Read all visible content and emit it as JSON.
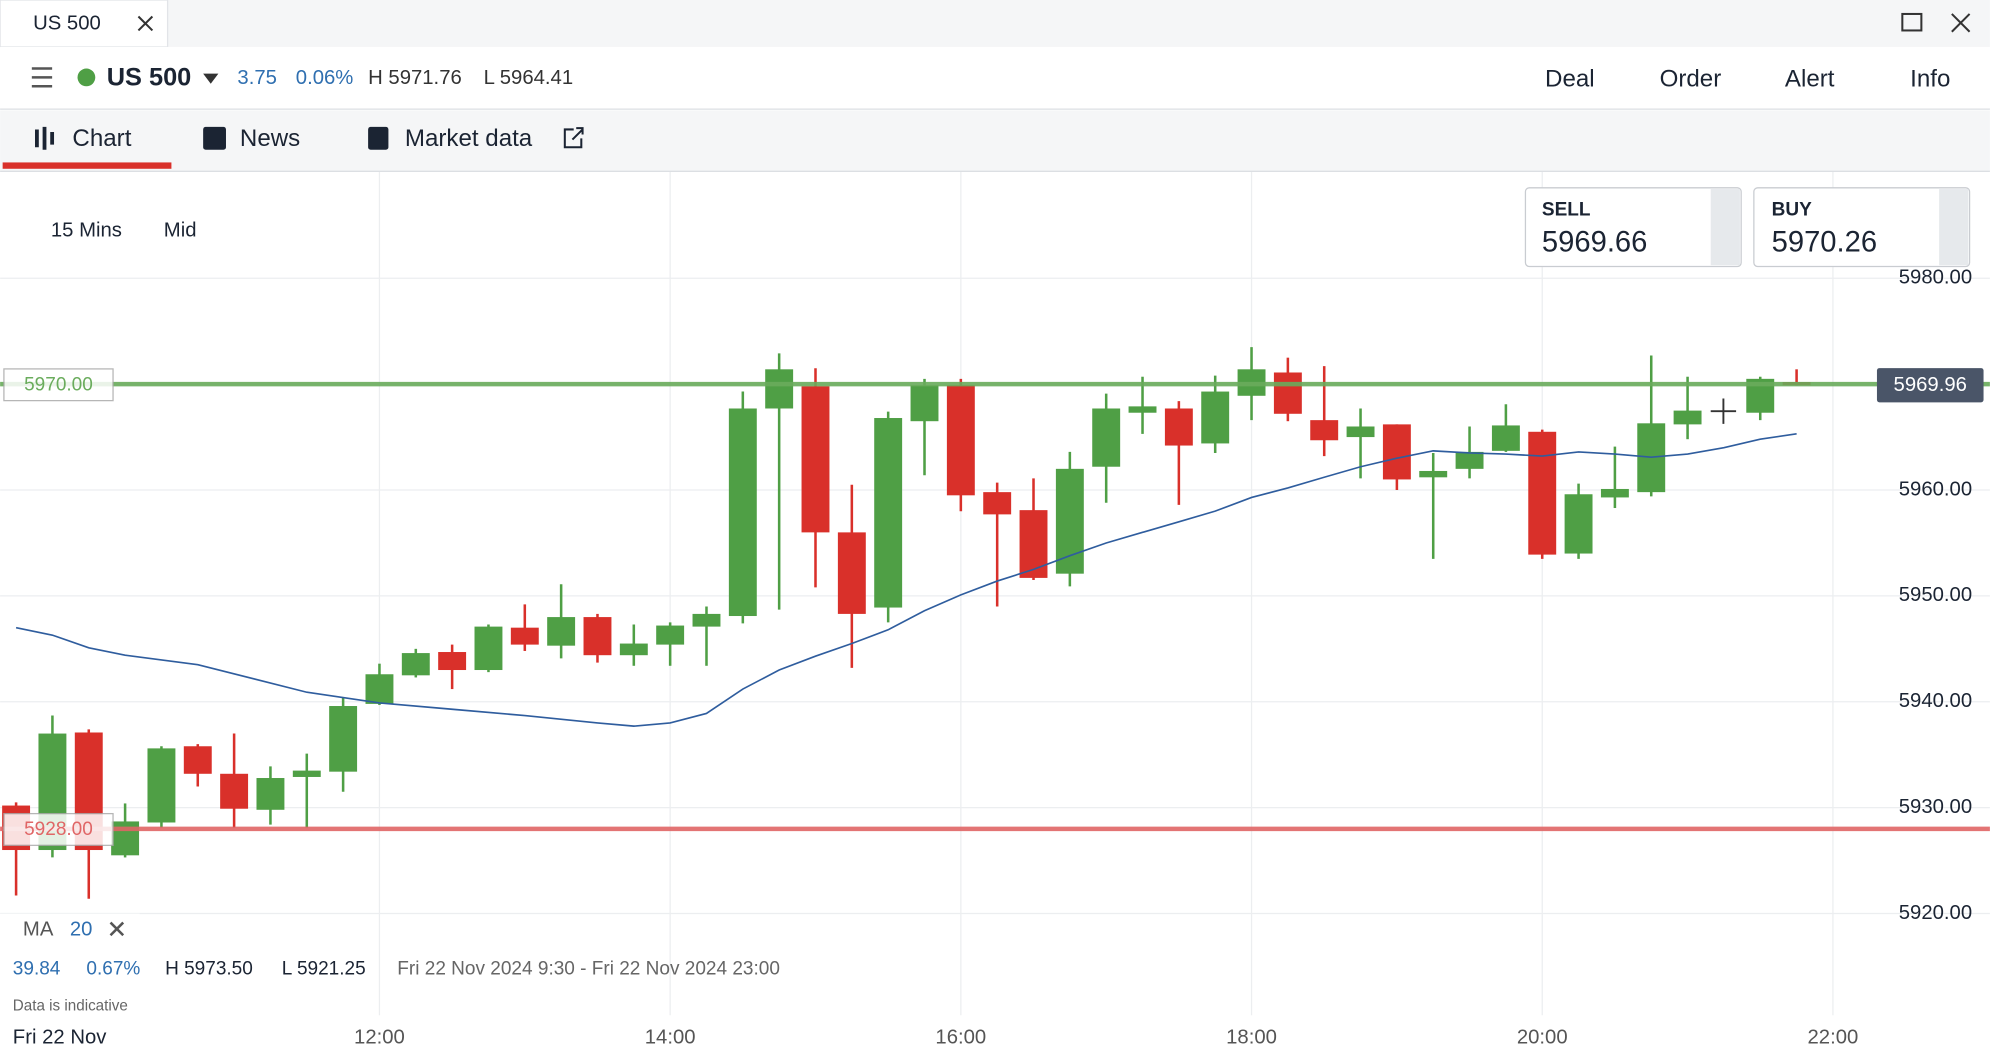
{
  "window": {
    "tab": "US 500"
  },
  "header": {
    "instrument": "US 500",
    "change": "3.75",
    "change_pct": "0.06%",
    "high": "H 5971.76",
    "low": "L 5964.41",
    "actions": [
      "Deal",
      "Order",
      "Alert",
      "Info"
    ]
  },
  "tabs": [
    "Chart",
    "News",
    "Market data"
  ],
  "settings": {
    "interval": "15 Mins",
    "price": "Mid"
  },
  "quotes": {
    "sell_label": "SELL",
    "sell": "5969.66",
    "buy_label": "BUY",
    "buy": "5970.26"
  },
  "indicator": {
    "name": "MA",
    "period": "20"
  },
  "stats": {
    "change": "39.84",
    "change_pct": "0.67%",
    "high": "H 5973.50",
    "low": "L 5921.25",
    "range": "Fri 22 Nov 2024 9:30 - Fri 22 Nov 2024 23:00"
  },
  "footer": {
    "note": "Data is indicative",
    "date": "Fri 22 Nov"
  },
  "chart_data": {
    "type": "candlestick",
    "up_color": "#4f9f45",
    "down_color": "#d9302a",
    "grid": true,
    "x": [
      9.5,
      9.75,
      10,
      10.25,
      10.5,
      10.75,
      11,
      11.25,
      11.5,
      11.75,
      12,
      12.25,
      12.5,
      12.75,
      13,
      13.25,
      13.5,
      13.75,
      14,
      14.25,
      14.5,
      14.75,
      15,
      15.25,
      15.5,
      15.75,
      16,
      16.25,
      16.5,
      16.75,
      17,
      17.25,
      17.5,
      17.75,
      18,
      18.25,
      18.5,
      18.75,
      19,
      19.25,
      19.5,
      19.75,
      20,
      20.25,
      20.5,
      20.75,
      21,
      21.5,
      21.75
    ],
    "open": [
      5930.2,
      5926.0,
      5937.1,
      5925.5,
      5928.6,
      5935.8,
      5933.2,
      5929.8,
      5932.9,
      5933.4,
      5939.8,
      5942.5,
      5944.7,
      5943.0,
      5947.0,
      5945.3,
      5948.0,
      5944.4,
      5945.4,
      5947.1,
      5948.1,
      5967.7,
      5969.8,
      5956.0,
      5948.9,
      5966.5,
      5969.9,
      5959.8,
      5958.1,
      5952.1,
      5962.2,
      5967.3,
      5967.7,
      5964.4,
      5968.9,
      5971.1,
      5966.6,
      5965.0,
      5966.2,
      5961.2,
      5962.0,
      5963.7,
      5965.5,
      5954.0,
      5959.3,
      5959.8,
      5966.2,
      5967.3,
      5970.2
    ],
    "high": [
      5930.5,
      5938.7,
      5937.4,
      5930.4,
      5935.8,
      5936.0,
      5937.0,
      5933.9,
      5935.1,
      5940.4,
      5943.6,
      5945.0,
      5945.4,
      5947.3,
      5949.2,
      5951.1,
      5948.3,
      5947.3,
      5947.5,
      5949.0,
      5969.3,
      5972.9,
      5971.5,
      5960.5,
      5967.4,
      5970.5,
      5970.5,
      5960.7,
      5961.1,
      5963.6,
      5969.1,
      5970.7,
      5968.4,
      5970.8,
      5973.5,
      5972.5,
      5971.7,
      5967.7,
      5966.2,
      5963.5,
      5966.0,
      5968.1,
      5965.7,
      5960.6,
      5964.1,
      5972.7,
      5970.7,
      5970.7,
      5971.4
    ],
    "low": [
      5921.7,
      5925.3,
      5921.4,
      5925.3,
      5928.1,
      5932.0,
      5928.1,
      5928.4,
      5928.1,
      5931.5,
      5939.7,
      5942.3,
      5941.2,
      5942.8,
      5944.8,
      5944.1,
      5943.7,
      5943.4,
      5943.4,
      5943.4,
      5947.4,
      5948.7,
      5950.8,
      5943.2,
      5947.5,
      5961.4,
      5958.0,
      5949.0,
      5951.5,
      5950.9,
      5958.8,
      5965.3,
      5958.6,
      5963.5,
      5966.6,
      5966.5,
      5963.2,
      5961.1,
      5960.0,
      5953.5,
      5961.1,
      5963.6,
      5953.5,
      5953.5,
      5958.3,
      5959.4,
      5964.8,
      5966.6,
      5969.9
    ],
    "close": [
      5926.0,
      5937.0,
      5926.0,
      5928.7,
      5935.6,
      5933.2,
      5929.9,
      5932.8,
      5933.5,
      5939.6,
      5942.6,
      5944.6,
      5943.0,
      5947.1,
      5945.4,
      5948.0,
      5944.4,
      5945.5,
      5947.2,
      5948.3,
      5967.7,
      5971.4,
      5956.0,
      5948.3,
      5966.8,
      5969.9,
      5959.5,
      5957.7,
      5951.7,
      5962.0,
      5967.7,
      5967.9,
      5964.2,
      5969.3,
      5971.4,
      5967.2,
      5964.7,
      5966.0,
      5961.0,
      5961.8,
      5963.6,
      5966.1,
      5953.9,
      5959.6,
      5960.1,
      5966.3,
      5967.5,
      5970.5,
      5969.9
    ],
    "ma": {
      "color": "#2f5d9e",
      "x": [
        9.5,
        9.75,
        10,
        10.25,
        10.75,
        11.5,
        12,
        12.5,
        13,
        13.5,
        13.75,
        14,
        14.25,
        14.5,
        14.75,
        15,
        15.25,
        15.5,
        15.75,
        16,
        16.25,
        16.5,
        16.75,
        17,
        17.25,
        17.5,
        17.75,
        18,
        18.25,
        18.5,
        18.75,
        19,
        19.25,
        19.5,
        19.75,
        20,
        20.25,
        20.5,
        20.75,
        21,
        21.25,
        21.5,
        21.75
      ],
      "values": [
        5947.0,
        5946.3,
        5945.1,
        5944.4,
        5943.5,
        5940.9,
        5939.9,
        5939.3,
        5938.7,
        5938.0,
        5937.7,
        5938.0,
        5938.9,
        5941.2,
        5943.0,
        5944.3,
        5945.5,
        5946.8,
        5948.6,
        5950.1,
        5951.4,
        5952.5,
        5953.8,
        5955.0,
        5956.0,
        5957.0,
        5958.0,
        5959.3,
        5960.2,
        5961.2,
        5962.2,
        5963.0,
        5963.7,
        5963.5,
        5963.4,
        5963.2,
        5963.6,
        5963.4,
        5963.1,
        5963.4,
        5964.0,
        5964.8,
        5965.3
      ]
    },
    "levels": [
      {
        "value": 5970,
        "label": "5970.00",
        "color": "#6aac5c"
      },
      {
        "value": 5928,
        "label": "5928.00",
        "color": "#e06666"
      }
    ],
    "current": {
      "value": 5969.96,
      "label": "5969.96"
    },
    "xlim": [
      9.39,
      23.08
    ],
    "xticks": [
      {
        "value": 12,
        "label": "12:00"
      },
      {
        "value": 14,
        "label": "14:00"
      },
      {
        "value": 16,
        "label": "16:00"
      },
      {
        "value": 18,
        "label": "18:00"
      },
      {
        "value": 20,
        "label": "20:00"
      },
      {
        "value": 22,
        "label": "22:00"
      }
    ],
    "ylim": [
      5910.4,
      5990.1
    ],
    "yticks": [
      {
        "value": 5920,
        "label": "5920.00"
      },
      {
        "value": 5930,
        "label": "5930.00"
      },
      {
        "value": 5940,
        "label": "5940.00"
      },
      {
        "value": 5950,
        "label": "5950.00"
      },
      {
        "value": 5960,
        "label": "5960.00"
      },
      {
        "value": 5970,
        "label": "5970.00"
      },
      {
        "value": 5980,
        "label": "5980.00"
      }
    ]
  }
}
